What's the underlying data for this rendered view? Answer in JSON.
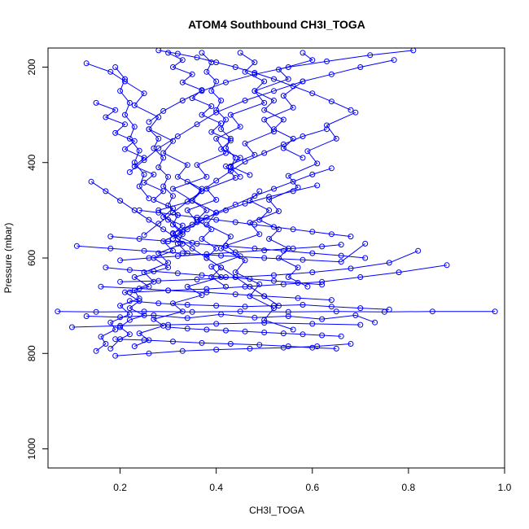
{
  "chart_data": {
    "type": "line",
    "title": "ATOM4 Southbound CH3I_TOGA",
    "xlabel": "CH3I_TOGA",
    "ylabel": "Pressure (mbar)",
    "xlim": [
      0.05,
      1.0
    ],
    "ylim": [
      1040,
      160
    ],
    "y_reversed": true,
    "grid": false,
    "xticks": [
      0.2,
      0.4,
      0.6,
      0.8,
      1.0
    ],
    "xtick_labels": [
      "0.2",
      "0.4",
      "0.6",
      "0.8",
      "1.0"
    ],
    "yticks": [
      200,
      400,
      600,
      800,
      1000
    ],
    "ytick_labels": [
      "200",
      "400",
      "600",
      "800",
      "1000"
    ],
    "color": "#0000ff",
    "series": [
      {
        "x": [
          0.18,
          0.2,
          0.22,
          0.2,
          0.22,
          0.25,
          0.22,
          0.24,
          0.21,
          0.26,
          0.23,
          0.3,
          0.27,
          0.31,
          0.29,
          0.33,
          0.3,
          0.28,
          0.35,
          0.31,
          0.38,
          0.36,
          0.42,
          0.4,
          0.45,
          0.43,
          0.5,
          0.48,
          0.55,
          0.53,
          0.6,
          0.58
        ],
        "y": [
          790,
          770,
          760,
          745,
          730,
          720,
          705,
          690,
          672,
          660,
          640,
          620,
          600,
          585,
          565,
          545,
          520,
          500,
          480,
          455,
          430,
          405,
          380,
          350,
          325,
          300,
          275,
          250,
          225,
          205,
          185,
          170
        ]
      },
      {
        "x": [
          0.15,
          0.17,
          0.16,
          0.19,
          0.18,
          0.22,
          0.2,
          0.24,
          0.23,
          0.27,
          0.25,
          0.3,
          0.28,
          0.33,
          0.31,
          0.36,
          0.34,
          0.4,
          0.38,
          0.44,
          0.42,
          0.48,
          0.46,
          0.52,
          0.5,
          0.56,
          0.54,
          0.58
        ],
        "y": [
          795,
          780,
          765,
          750,
          735,
          718,
          700,
          685,
          668,
          650,
          630,
          610,
          590,
          570,
          548,
          525,
          500,
          478,
          455,
          432,
          408,
          384,
          360,
          335,
          310,
          285,
          260,
          230
        ]
      },
      {
        "x": [
          0.23,
          0.26,
          0.24,
          0.29,
          0.27,
          0.33,
          0.31,
          0.37,
          0.34,
          0.41,
          0.39,
          0.45,
          0.42,
          0.49,
          0.47,
          0.53,
          0.51,
          0.57,
          0.55,
          0.61,
          0.59,
          0.65,
          0.63,
          0.69
        ],
        "y": [
          785,
          772,
          758,
          742,
          728,
          712,
          695,
          678,
          660,
          640,
          618,
          596,
          574,
          550,
          526,
          502,
          478,
          452,
          428,
          402,
          376,
          350,
          322,
          295
        ]
      },
      {
        "x": [
          0.07,
          0.15,
          0.25,
          0.35,
          0.45,
          0.55,
          0.65,
          0.75,
          0.85,
          0.98
        ],
        "y": [
          712,
          713,
          712,
          713,
          712,
          713,
          712,
          713,
          712,
          712
        ]
      },
      {
        "x": [
          0.1,
          0.2,
          0.3,
          0.4,
          0.5,
          0.6,
          0.7
        ],
        "y": [
          745,
          742,
          740,
          738,
          736,
          738,
          740
        ]
      },
      {
        "x": [
          0.13,
          0.2,
          0.27,
          0.34,
          0.41,
          0.48,
          0.55,
          0.62,
          0.69,
          0.73
        ],
        "y": [
          722,
          724,
          720,
          726,
          718,
          725,
          722,
          728,
          720,
          735
        ]
      },
      {
        "x": [
          0.22,
          0.3,
          0.38,
          0.46,
          0.54,
          0.62,
          0.7,
          0.78,
          0.88
        ],
        "y": [
          672,
          668,
          665,
          660,
          655,
          650,
          640,
          630,
          615
        ]
      },
      {
        "x": [
          0.2,
          0.28,
          0.36,
          0.44,
          0.52,
          0.6,
          0.68,
          0.76,
          0.82
        ],
        "y": [
          650,
          648,
          645,
          640,
          636,
          630,
          622,
          610,
          585
        ]
      },
      {
        "x": [
          0.11,
          0.18,
          0.25,
          0.33,
          0.41,
          0.5,
          0.58,
          0.66,
          0.71
        ],
        "y": [
          575,
          580,
          585,
          590,
          595,
          600,
          604,
          608,
          570
        ]
      },
      {
        "x": [
          0.19,
          0.26,
          0.33,
          0.4,
          0.47,
          0.54,
          0.61,
          0.68
        ],
        "y": [
          805,
          800,
          795,
          792,
          790,
          788,
          785,
          780
        ]
      },
      {
        "x": [
          0.16,
          0.24,
          0.3,
          0.38,
          0.44,
          0.5,
          0.57,
          0.64
        ],
        "y": [
          660,
          664,
          668,
          672,
          676,
          680,
          684,
          688
        ]
      },
      {
        "x": [
          0.22,
          0.28,
          0.34,
          0.4,
          0.46,
          0.52,
          0.58,
          0.64,
          0.7,
          0.76
        ],
        "y": [
          690,
          695,
          698,
          700,
          702,
          700,
          698,
          702,
          705,
          708
        ]
      },
      {
        "x": [
          0.13,
          0.18,
          0.21,
          0.25,
          0.23,
          0.28,
          0.26,
          0.31,
          0.29,
          0.34,
          0.32,
          0.37,
          0.35,
          0.4,
          0.38,
          0.43,
          0.41,
          0.46,
          0.44,
          0.49,
          0.47,
          0.52,
          0.5,
          0.56
        ],
        "y": [
          192,
          210,
          230,
          255,
          280,
          305,
          330,
          355,
          380,
          405,
          430,
          455,
          480,
          505,
          530,
          555,
          580,
          605,
          630,
          655,
          680,
          705,
          730,
          750
        ]
      },
      {
        "x": [
          0.77,
          0.7,
          0.64,
          0.58,
          0.52,
          0.46,
          0.4,
          0.36,
          0.32,
          0.28,
          0.25,
          0.22
        ],
        "y": [
          185,
          200,
          215,
          230,
          250,
          270,
          295,
          320,
          345,
          370,
          395,
          420
        ]
      },
      {
        "x": [
          0.81,
          0.72,
          0.63,
          0.55,
          0.48,
          0.42,
          0.37,
          0.33,
          0.29,
          0.26
        ],
        "y": [
          165,
          175,
          188,
          200,
          215,
          232,
          250,
          270,
          292,
          315
        ]
      },
      {
        "x": [
          0.63,
          0.58,
          0.54,
          0.5,
          0.46,
          0.43,
          0.4,
          0.37,
          0.34,
          0.31,
          0.28,
          0.25
        ],
        "y": [
          330,
          345,
          362,
          380,
          398,
          418,
          438,
          460,
          482,
          505,
          528,
          552
        ]
      },
      {
        "x": [
          0.64,
          0.6,
          0.56,
          0.52,
          0.48,
          0.44,
          0.4,
          0.37,
          0.34,
          0.31
        ],
        "y": [
          412,
          425,
          440,
          455,
          470,
          488,
          505,
          522,
          540,
          560
        ]
      },
      {
        "x": [
          0.61,
          0.56,
          0.51,
          0.46,
          0.42,
          0.38,
          0.35,
          0.32
        ],
        "y": [
          448,
          460,
          472,
          486,
          500,
          515,
          530,
          548
        ]
      },
      {
        "x": [
          0.15,
          0.19,
          0.17,
          0.21,
          0.19,
          0.23,
          0.21,
          0.25,
          0.23,
          0.27,
          0.25,
          0.29,
          0.27,
          0.31,
          0.29,
          0.33,
          0.31,
          0.35
        ],
        "y": [
          275,
          290,
          305,
          320,
          338,
          355,
          372,
          390,
          408,
          425,
          442,
          460,
          478,
          496,
          514,
          532,
          550,
          568
        ]
      },
      {
        "x": [
          0.14,
          0.17,
          0.2,
          0.23,
          0.26,
          0.29,
          0.32,
          0.35,
          0.38,
          0.41,
          0.44,
          0.47,
          0.5,
          0.53
        ],
        "y": [
          440,
          460,
          480,
          500,
          520,
          540,
          560,
          580,
          600,
          620,
          640,
          660,
          680,
          700
        ]
      },
      {
        "x": [
          0.3,
          0.33,
          0.31,
          0.35,
          0.33,
          0.37,
          0.35,
          0.39,
          0.37,
          0.41,
          0.39,
          0.43,
          0.41,
          0.45,
          0.43,
          0.47
        ],
        "y": [
          170,
          185,
          200,
          215,
          232,
          248,
          265,
          282,
          300,
          318,
          336,
          354,
          372,
          390,
          408,
          426
        ]
      },
      {
        "x": [
          0.45,
          0.48,
          0.46,
          0.5,
          0.48,
          0.52,
          0.5,
          0.54,
          0.52,
          0.56,
          0.54,
          0.58
        ],
        "y": [
          170,
          190,
          210,
          230,
          250,
          270,
          290,
          310,
          330,
          350,
          370,
          390
        ]
      },
      {
        "x": [
          0.24,
          0.28,
          0.32,
          0.36,
          0.4,
          0.44,
          0.48,
          0.52,
          0.56,
          0.6,
          0.64,
          0.68
        ],
        "y": [
          500,
          505,
          510,
          515,
          520,
          525,
          530,
          535,
          540,
          545,
          550,
          555
        ]
      },
      {
        "x": [
          0.18,
          0.24,
          0.3,
          0.36,
          0.42,
          0.48,
          0.54,
          0.6,
          0.66,
          0.71
        ],
        "y": [
          555,
          560,
          565,
          570,
          575,
          580,
          585,
          590,
          595,
          600
        ]
      },
      {
        "x": [
          0.17,
          0.22,
          0.27,
          0.32,
          0.37,
          0.42,
          0.47,
          0.52,
          0.57,
          0.62
        ],
        "y": [
          620,
          625,
          628,
          632,
          636,
          640,
          644,
          648,
          652,
          656
        ]
      },
      {
        "x": [
          0.3,
          0.34,
          0.38,
          0.42,
          0.46,
          0.5,
          0.54,
          0.58,
          0.62,
          0.66
        ],
        "y": [
          745,
          748,
          750,
          752,
          754,
          756,
          758,
          760,
          762,
          764
        ]
      },
      {
        "x": [
          0.19,
          0.25,
          0.31,
          0.37,
          0.43,
          0.49,
          0.55,
          0.6,
          0.65
        ],
        "y": [
          770,
          772,
          775,
          778,
          780,
          782,
          785,
          788,
          790
        ]
      },
      {
        "x": [
          0.28,
          0.32,
          0.36,
          0.4,
          0.44,
          0.48,
          0.52,
          0.56,
          0.6,
          0.64,
          0.68
        ],
        "y": [
          165,
          172,
          180,
          190,
          200,
          212,
          225,
          240,
          255,
          272,
          290
        ]
      },
      {
        "x": [
          0.37,
          0.39,
          0.38,
          0.4,
          0.39,
          0.41,
          0.4,
          0.42,
          0.41,
          0.43,
          0.42,
          0.44,
          0.43,
          0.45
        ],
        "y": [
          170,
          190,
          210,
          230,
          250,
          270,
          290,
          310,
          330,
          350,
          370,
          390,
          410,
          430
        ]
      },
      {
        "x": [
          0.19,
          0.21,
          0.2,
          0.22,
          0.21,
          0.23,
          0.22,
          0.24,
          0.23,
          0.25,
          0.24,
          0.26
        ],
        "y": [
          200,
          225,
          250,
          275,
          300,
          325,
          350,
          375,
          400,
          425,
          450,
          475
        ]
      },
      {
        "x": [
          0.26,
          0.28,
          0.27,
          0.29,
          0.28,
          0.3,
          0.29,
          0.31,
          0.3,
          0.32,
          0.31,
          0.33,
          0.32,
          0.34
        ],
        "y": [
          330,
          350,
          370,
          390,
          410,
          430,
          450,
          470,
          490,
          510,
          530,
          550,
          570,
          590
        ]
      },
      {
        "x": [
          0.34,
          0.37,
          0.35,
          0.38,
          0.36,
          0.39,
          0.37,
          0.4,
          0.38,
          0.41,
          0.39,
          0.42
        ],
        "y": [
          440,
          460,
          480,
          500,
          520,
          540,
          560,
          580,
          600,
          620,
          640,
          660
        ]
      },
      {
        "x": [
          0.49,
          0.47,
          0.51,
          0.49,
          0.53,
          0.51,
          0.55,
          0.53,
          0.57,
          0.55,
          0.59
        ],
        "y": [
          460,
          480,
          500,
          520,
          540,
          560,
          580,
          600,
          620,
          640,
          660
        ]
      },
      {
        "x": [
          0.2,
          0.26,
          0.32,
          0.38,
          0.44,
          0.5,
          0.56,
          0.62,
          0.66
        ],
        "y": [
          605,
          600,
          596,
          592,
          588,
          584,
          580,
          576,
          572
        ]
      }
    ]
  }
}
